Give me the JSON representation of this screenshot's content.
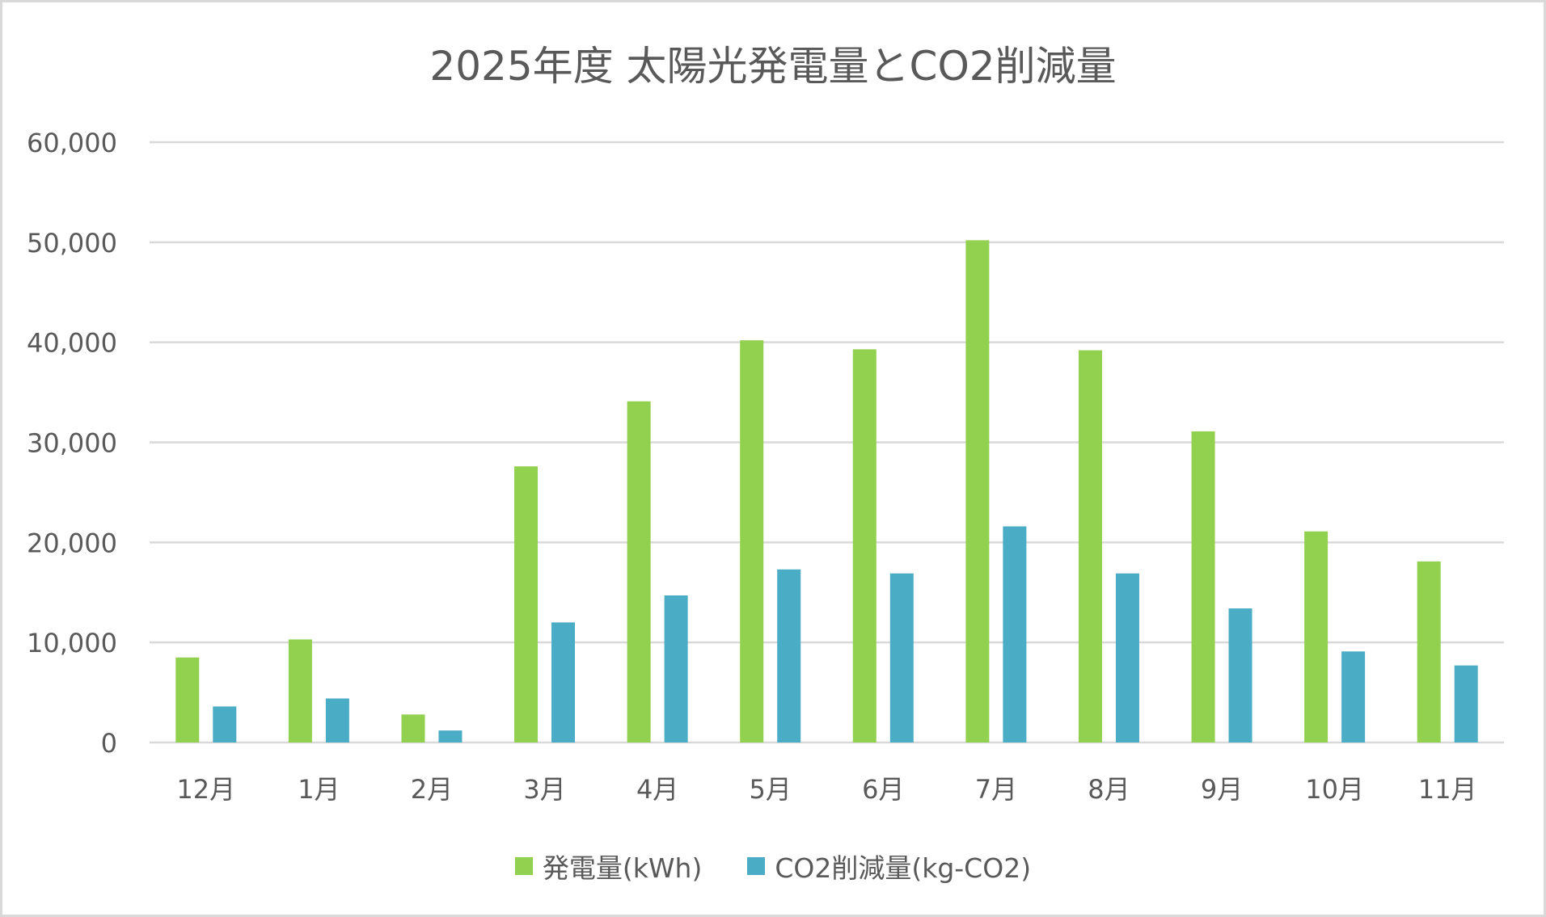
{
  "chart_data": {
    "type": "bar",
    "title": "2025年度 太陽光発電量とCO2削減量",
    "xlabel": "",
    "ylabel": "",
    "categories": [
      "12月",
      "1月",
      "2月",
      "3月",
      "4月",
      "5月",
      "6月",
      "7月",
      "8月",
      "9月",
      "10月",
      "11月"
    ],
    "series": [
      {
        "name": "発電量(kWh)",
        "color": "#92d050",
        "values": [
          8500,
          10300,
          2800,
          27600,
          34100,
          40200,
          39300,
          50200,
          39200,
          31100,
          21100,
          18100
        ]
      },
      {
        "name": "CO2削減量(kg-CO2)",
        "color": "#4bacc6",
        "values": [
          3600,
          4400,
          1200,
          12000,
          14700,
          17300,
          16900,
          21600,
          16900,
          13400,
          9100,
          7700
        ]
      }
    ],
    "ylim": [
      0,
      60000
    ],
    "yticks": [
      0,
      10000,
      20000,
      30000,
      40000,
      50000,
      60000
    ],
    "ytick_labels": [
      "0",
      "10,000",
      "20,000",
      "30,000",
      "40,000",
      "50,000",
      "60,000"
    ],
    "grid": true,
    "gridline_color": "#d9d9d9",
    "text_color": "#595959",
    "legend_position": "bottom"
  }
}
